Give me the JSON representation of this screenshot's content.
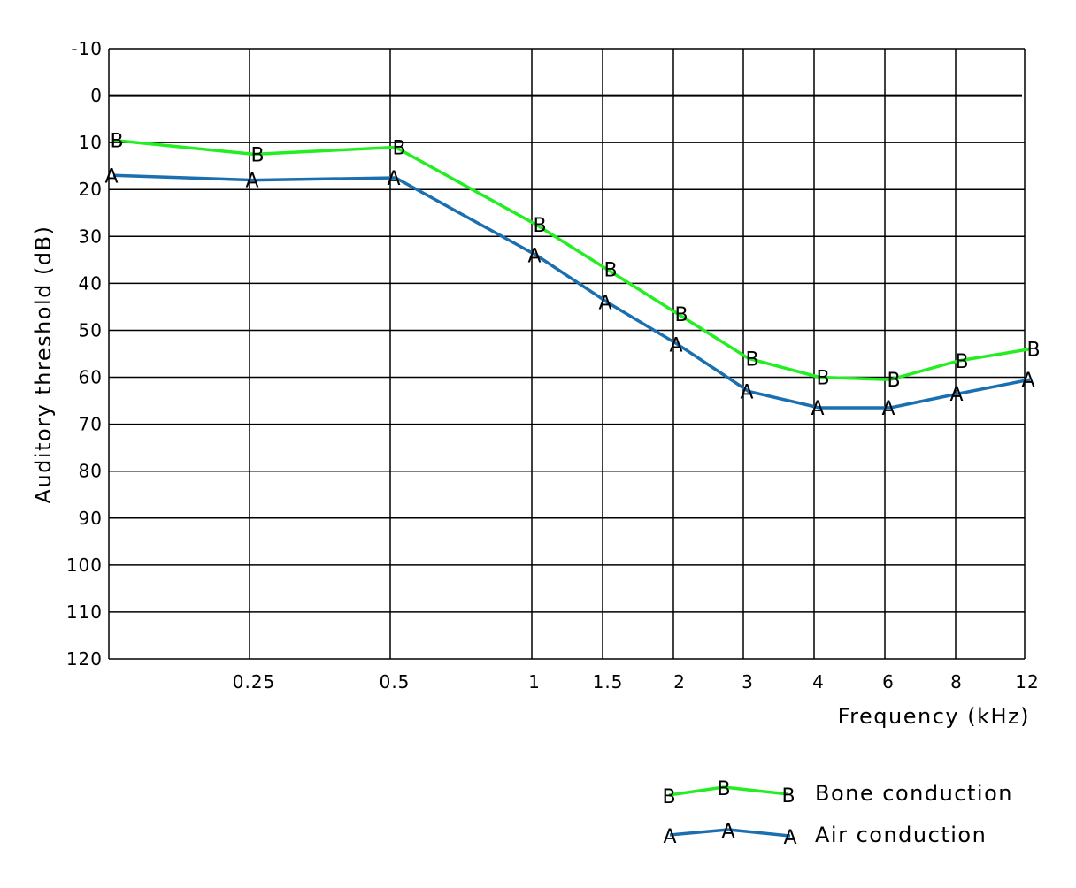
{
  "chart_data": {
    "type": "line",
    "title": "",
    "xlabel": "Frequency (kHz)",
    "ylabel": "Auditory threshold (dB)",
    "x_tick_labels": [
      "0.25",
      "0.5",
      "1",
      "1.5",
      "2",
      "3",
      "4",
      "6",
      "8",
      "12"
    ],
    "y_tick_labels": [
      "-10",
      "0",
      "10",
      "20",
      "30",
      "40",
      "50",
      "60",
      "70",
      "80",
      "90",
      "100",
      "110",
      "120"
    ],
    "ylim": [
      -10,
      120
    ],
    "y_inverted": true,
    "grid": true,
    "legend_position": "bottom-right",
    "x_positions": [
      "0.125",
      "0.25",
      "0.5",
      "1",
      "1.5",
      "2",
      "3",
      "4",
      "6",
      "8",
      "12"
    ],
    "series": [
      {
        "name": "Bone conduction",
        "marker": "B",
        "color": "#22ee22",
        "values": [
          9.5,
          12.5,
          11,
          27.5,
          37,
          46.5,
          56,
          60,
          60.5,
          56.5,
          54
        ]
      },
      {
        "name": "Air conduction",
        "marker": "A",
        "color": "#1a6fb0",
        "values": [
          17,
          18,
          17.5,
          34,
          44,
          53,
          63,
          66.5,
          66.5,
          63.5,
          60.5
        ]
      }
    ]
  }
}
